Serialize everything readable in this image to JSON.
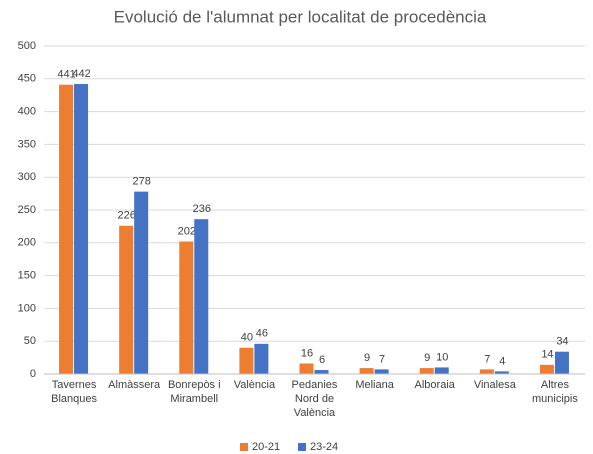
{
  "chart_data": {
    "type": "bar",
    "title": "Evolució de l'alumnat per localitat de procedència",
    "categories": [
      "Tavernes Blanques",
      "Almàssera",
      "Bonrepòs i Mirambell",
      "València",
      "Pedanies Nord de València",
      "Meliana",
      "Alboraia",
      "Vinalesa",
      "Altres municipis"
    ],
    "series": [
      {
        "name": "20-21",
        "color": "#ed7d31",
        "values": [
          441,
          226,
          202,
          40,
          16,
          9,
          9,
          7,
          14
        ]
      },
      {
        "name": "23-24",
        "color": "#4472c4",
        "values": [
          442,
          278,
          236,
          46,
          6,
          7,
          10,
          4,
          34
        ]
      }
    ],
    "ylim": [
      0,
      500
    ],
    "yticks": [
      0,
      50,
      100,
      150,
      200,
      250,
      300,
      350,
      400,
      450,
      500
    ],
    "grid": true,
    "legend": "bottom"
  }
}
